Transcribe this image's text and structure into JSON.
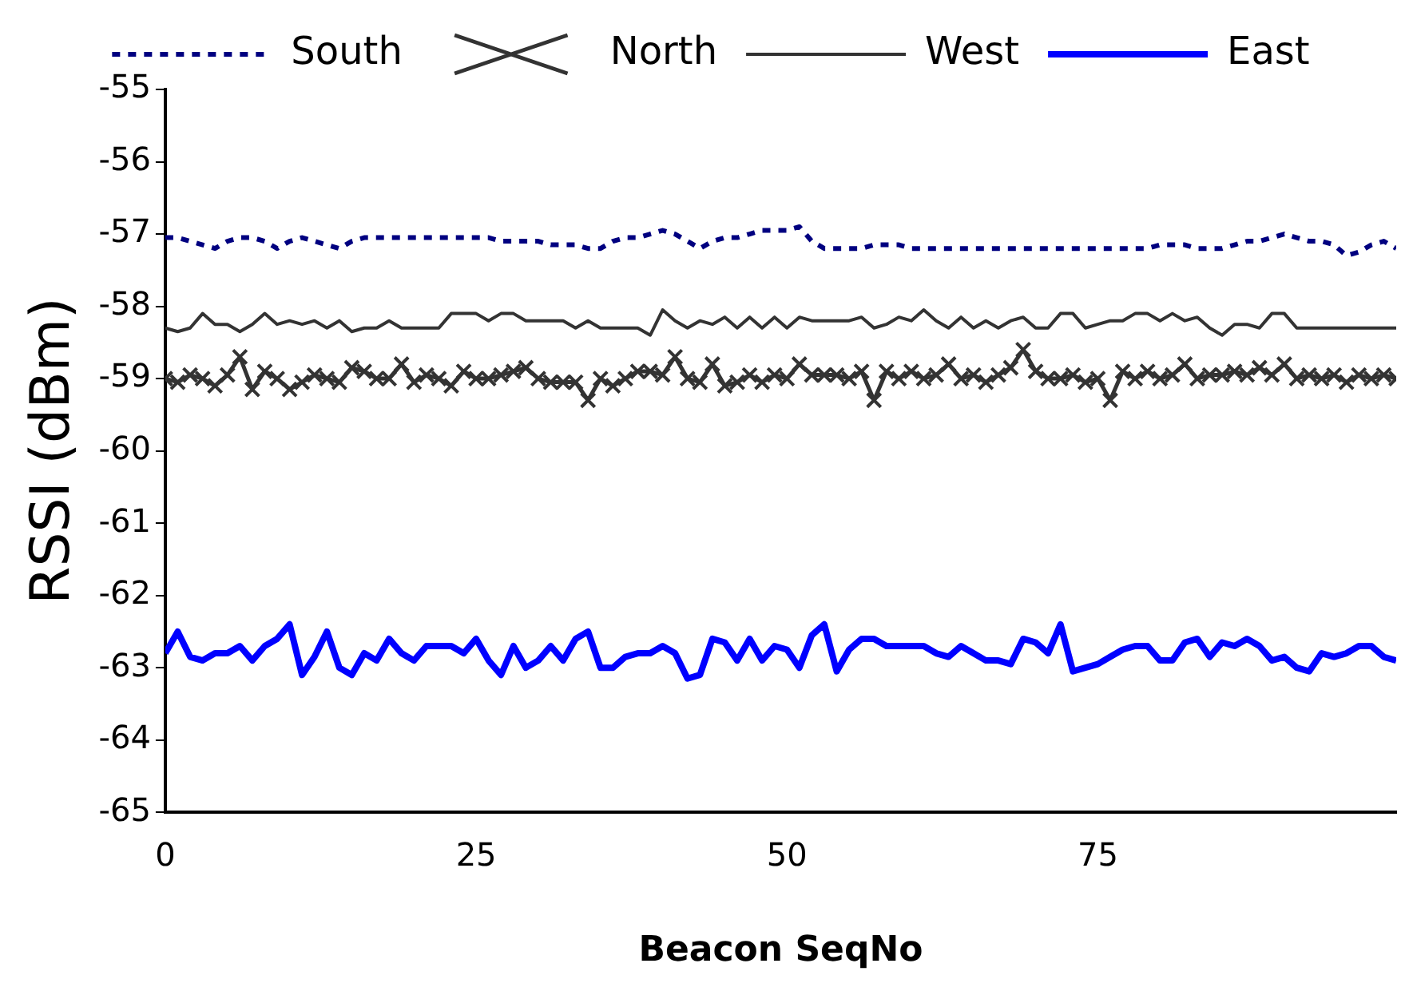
{
  "chart_data": {
    "type": "line",
    "xlabel": "Beacon SeqNo",
    "ylabel": "RSSI (dBm)",
    "x": [
      0,
      1,
      2,
      3,
      4,
      5,
      6,
      7,
      8,
      9,
      10,
      11,
      12,
      13,
      14,
      15,
      16,
      17,
      18,
      19,
      20,
      21,
      22,
      23,
      24,
      25,
      26,
      27,
      28,
      29,
      30,
      31,
      32,
      33,
      34,
      35,
      36,
      37,
      38,
      39,
      40,
      41,
      42,
      43,
      44,
      45,
      46,
      47,
      48,
      49,
      50,
      51,
      52,
      53,
      54,
      55,
      56,
      57,
      58,
      59,
      60,
      61,
      62,
      63,
      64,
      65,
      66,
      67,
      68,
      69,
      70,
      71,
      72,
      73,
      74,
      75,
      76,
      77,
      78,
      79,
      80,
      81,
      82,
      83,
      84,
      85,
      86,
      87,
      88,
      89,
      90,
      91,
      92,
      93,
      94,
      95,
      96,
      97,
      98,
      99
    ],
    "xlim": [
      0,
      99
    ],
    "xticks": [
      0,
      25,
      50,
      75
    ],
    "ylim": [
      -65,
      -55
    ],
    "yticks": [
      -65,
      -64,
      -63,
      -62,
      -61,
      -60,
      -59,
      -58,
      -57,
      -56,
      -55
    ],
    "grid": false,
    "legend": "top",
    "series": [
      {
        "name": "South",
        "color": "#000080",
        "line_style": "dotted",
        "marker": "none",
        "values": [
          -57.05,
          -57.05,
          -57.1,
          -57.15,
          -57.2,
          -57.1,
          -57.05,
          -57.05,
          -57.1,
          -57.2,
          -57.1,
          -57.05,
          -57.1,
          -57.15,
          -57.2,
          -57.1,
          -57.05,
          -57.05,
          -57.05,
          -57.05,
          -57.05,
          -57.05,
          -57.05,
          -57.05,
          -57.05,
          -57.05,
          -57.05,
          -57.1,
          -57.1,
          -57.1,
          -57.1,
          -57.15,
          -57.15,
          -57.15,
          -57.2,
          -57.2,
          -57.1,
          -57.05,
          -57.05,
          -57.0,
          -56.95,
          -57.0,
          -57.1,
          -57.2,
          -57.1,
          -57.05,
          -57.05,
          -57.0,
          -56.95,
          -56.95,
          -56.95,
          -56.9,
          -57.1,
          -57.2,
          -57.2,
          -57.2,
          -57.2,
          -57.15,
          -57.15,
          -57.15,
          -57.2,
          -57.2,
          -57.2,
          -57.2,
          -57.2,
          -57.2,
          -57.2,
          -57.2,
          -57.2,
          -57.2,
          -57.2,
          -57.2,
          -57.2,
          -57.2,
          -57.2,
          -57.2,
          -57.2,
          -57.2,
          -57.2,
          -57.2,
          -57.15,
          -57.15,
          -57.15,
          -57.2,
          -57.2,
          -57.2,
          -57.15,
          -57.1,
          -57.1,
          -57.05,
          -57.0,
          -57.05,
          -57.1,
          -57.1,
          -57.15,
          -57.3,
          -57.25,
          -57.15,
          -57.1,
          -57.2
        ]
      },
      {
        "name": "North",
        "color": "#333333",
        "line_style": "solid",
        "marker": "cross",
        "values": [
          -59.0,
          -59.05,
          -58.95,
          -59.0,
          -59.1,
          -58.95,
          -58.7,
          -59.15,
          -58.9,
          -59.0,
          -59.15,
          -59.05,
          -58.95,
          -59.0,
          -59.05,
          -58.85,
          -58.9,
          -59.0,
          -59.0,
          -58.8,
          -59.05,
          -58.95,
          -59.0,
          -59.1,
          -58.9,
          -59.0,
          -59.0,
          -58.95,
          -58.9,
          -58.85,
          -59.0,
          -59.05,
          -59.05,
          -59.05,
          -59.3,
          -59.0,
          -59.1,
          -59.0,
          -58.9,
          -58.9,
          -58.95,
          -58.7,
          -59.0,
          -59.05,
          -58.8,
          -59.1,
          -59.05,
          -58.95,
          -59.05,
          -58.95,
          -59.0,
          -58.8,
          -58.95,
          -58.95,
          -58.95,
          -59.0,
          -58.9,
          -59.3,
          -58.9,
          -59.0,
          -58.9,
          -59.0,
          -58.95,
          -58.8,
          -59.0,
          -58.95,
          -59.05,
          -58.95,
          -58.85,
          -58.6,
          -58.9,
          -59.0,
          -59.0,
          -58.95,
          -59.05,
          -59.0,
          -59.3,
          -58.9,
          -59.0,
          -58.9,
          -59.0,
          -58.95,
          -58.8,
          -59.0,
          -58.95,
          -58.95,
          -58.9,
          -58.95,
          -58.85,
          -58.95,
          -58.8,
          -59.0,
          -58.95,
          -59.0,
          -58.95,
          -59.05,
          -58.95,
          -59.0,
          -58.95,
          -59.0
        ]
      },
      {
        "name": "West",
        "color": "#333333",
        "line_style": "solid",
        "marker": "none",
        "values": [
          -58.3,
          -58.35,
          -58.3,
          -58.1,
          -58.25,
          -58.25,
          -58.35,
          -58.25,
          -58.1,
          -58.25,
          -58.2,
          -58.25,
          -58.2,
          -58.3,
          -58.2,
          -58.35,
          -58.3,
          -58.3,
          -58.2,
          -58.3,
          -58.3,
          -58.3,
          -58.3,
          -58.1,
          -58.1,
          -58.1,
          -58.2,
          -58.1,
          -58.1,
          -58.2,
          -58.2,
          -58.2,
          -58.2,
          -58.3,
          -58.2,
          -58.3,
          -58.3,
          -58.3,
          -58.3,
          -58.4,
          -58.05,
          -58.2,
          -58.3,
          -58.2,
          -58.25,
          -58.15,
          -58.3,
          -58.15,
          -58.3,
          -58.15,
          -58.3,
          -58.15,
          -58.2,
          -58.2,
          -58.2,
          -58.2,
          -58.15,
          -58.3,
          -58.25,
          -58.15,
          -58.2,
          -58.05,
          -58.2,
          -58.3,
          -58.15,
          -58.3,
          -58.2,
          -58.3,
          -58.2,
          -58.15,
          -58.3,
          -58.3,
          -58.1,
          -58.1,
          -58.3,
          -58.25,
          -58.2,
          -58.2,
          -58.1,
          -58.1,
          -58.2,
          -58.1,
          -58.2,
          -58.15,
          -58.3,
          -58.4,
          -58.25,
          -58.25,
          -58.3,
          -58.1,
          -58.1,
          -58.3,
          -58.3,
          -58.3,
          -58.3,
          -58.3,
          -58.3,
          -58.3,
          -58.3,
          -58.3
        ]
      },
      {
        "name": "East",
        "color": "#0000ff",
        "line_style": "solid",
        "marker": "none",
        "values": [
          -62.8,
          -62.5,
          -62.85,
          -62.9,
          -62.8,
          -62.8,
          -62.7,
          -62.9,
          -62.7,
          -62.6,
          -62.4,
          -63.1,
          -62.85,
          -62.5,
          -63.0,
          -63.1,
          -62.8,
          -62.9,
          -62.6,
          -62.8,
          -62.9,
          -62.7,
          -62.7,
          -62.7,
          -62.8,
          -62.6,
          -62.9,
          -63.1,
          -62.7,
          -63.0,
          -62.9,
          -62.7,
          -62.9,
          -62.6,
          -62.5,
          -63.0,
          -63.0,
          -62.85,
          -62.8,
          -62.8,
          -62.7,
          -62.8,
          -63.15,
          -63.1,
          -62.6,
          -62.65,
          -62.9,
          -62.6,
          -62.9,
          -62.7,
          -62.75,
          -63.0,
          -62.55,
          -62.4,
          -63.05,
          -62.75,
          -62.6,
          -62.6,
          -62.7,
          -62.7,
          -62.7,
          -62.7,
          -62.8,
          -62.85,
          -62.7,
          -62.8,
          -62.9,
          -62.9,
          -62.95,
          -62.6,
          -62.65,
          -62.8,
          -62.4,
          -63.05,
          -63.0,
          -62.95,
          -62.85,
          -62.75,
          -62.7,
          -62.7,
          -62.9,
          -62.9,
          -62.65,
          -62.6,
          -62.85,
          -62.65,
          -62.7,
          -62.6,
          -62.7,
          -62.9,
          -62.85,
          -63.0,
          -63.05,
          -62.8,
          -62.85,
          -62.8,
          -62.7,
          -62.7,
          -62.85,
          -62.9
        ]
      }
    ]
  }
}
